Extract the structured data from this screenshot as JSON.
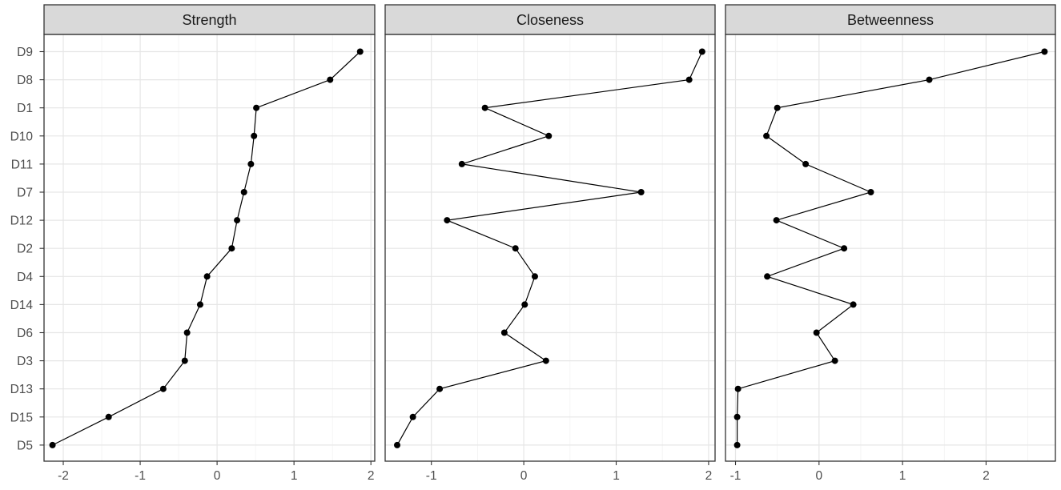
{
  "chart_data": {
    "type": "line",
    "orientation": "horizontal-dot-line",
    "categories": [
      "D9",
      "D8",
      "D1",
      "D10",
      "D11",
      "D7",
      "D12",
      "D2",
      "D4",
      "D14",
      "D6",
      "D3",
      "D13",
      "D15",
      "D5"
    ],
    "grid": true,
    "legend": "none",
    "point_color": "#000000",
    "strip_color": "#d9d9d9",
    "panels": [
      {
        "title": "Strength",
        "xlim": [
          -2.25,
          2.05
        ],
        "xticks": [
          -2,
          -1,
          0,
          1,
          2
        ],
        "values": [
          1.86,
          1.47,
          0.51,
          0.48,
          0.44,
          0.35,
          0.26,
          0.19,
          -0.13,
          -0.22,
          -0.39,
          -0.42,
          -0.7,
          -1.41,
          -2.14
        ]
      },
      {
        "title": "Closeness",
        "xlim": [
          -1.5,
          2.07
        ],
        "xticks": [
          -1,
          0,
          1,
          2
        ],
        "values": [
          1.93,
          1.79,
          -0.42,
          0.27,
          -0.67,
          1.27,
          -0.83,
          -0.09,
          0.12,
          0.01,
          -0.21,
          0.24,
          -0.91,
          -1.2,
          -1.37
        ]
      },
      {
        "title": "Betweenness",
        "xlim": [
          -1.12,
          2.83
        ],
        "xticks": [
          -1,
          0,
          1,
          2
        ],
        "values": [
          2.7,
          1.32,
          -0.5,
          -0.63,
          -0.16,
          0.62,
          -0.51,
          0.3,
          -0.62,
          0.41,
          -0.03,
          0.19,
          -0.97,
          -0.98,
          -0.98
        ]
      }
    ]
  }
}
